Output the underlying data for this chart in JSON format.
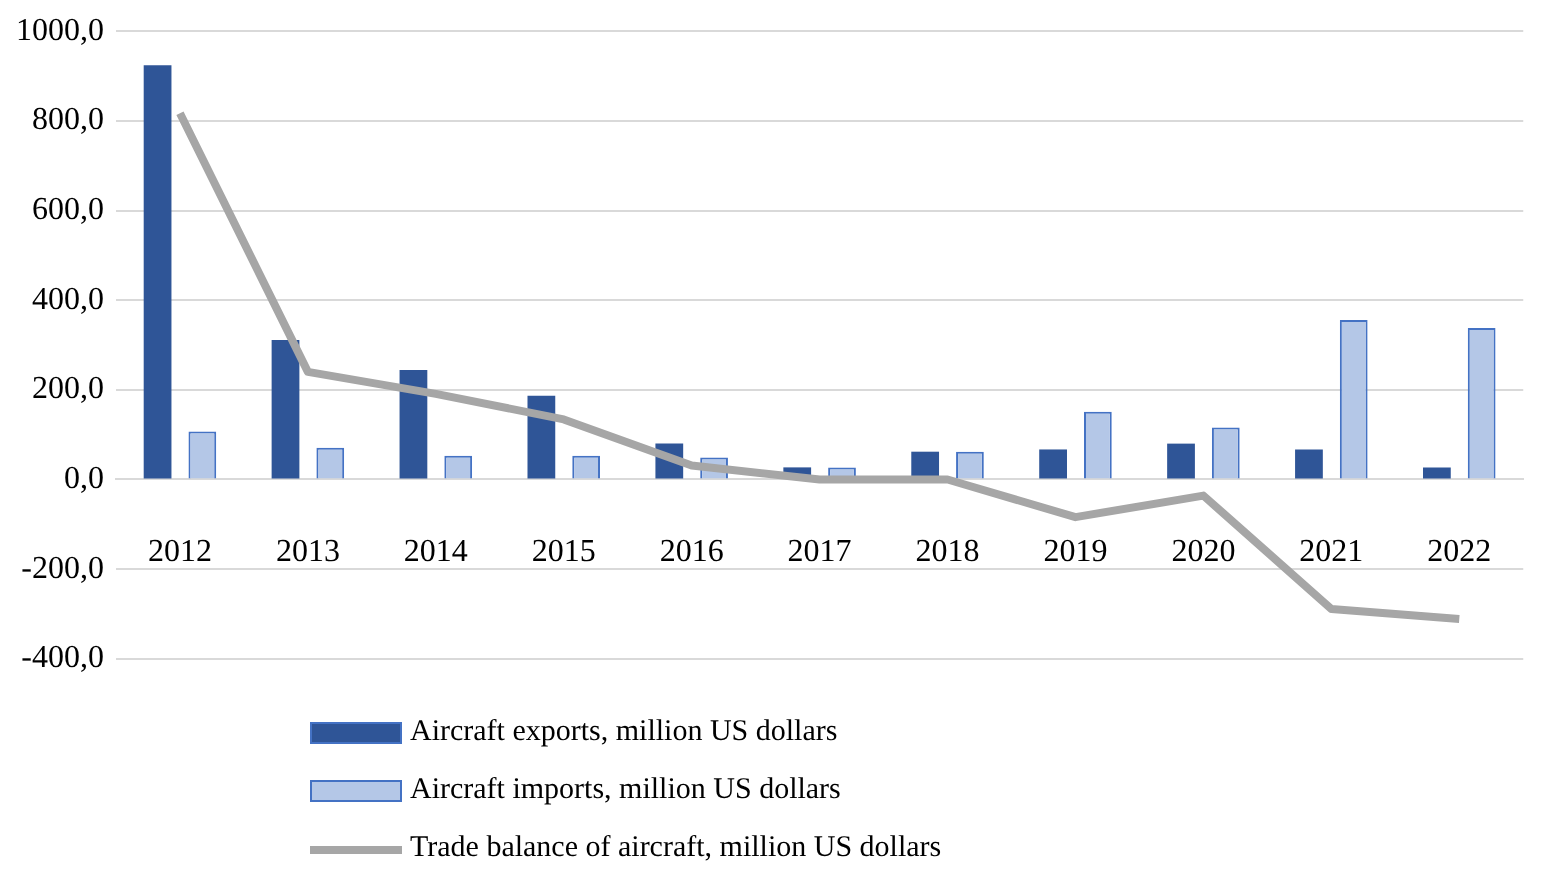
{
  "chart_data": {
    "type": "bar",
    "categories": [
      "2012",
      "2013",
      "2014",
      "2015",
      "2016",
      "2017",
      "2018",
      "2019",
      "2020",
      "2021",
      "2022"
    ],
    "series": [
      {
        "name": "Aircraft exports, million US dollars",
        "color": "#2f5597",
        "values": [
          924,
          311,
          244,
          187,
          80,
          27,
          62,
          67,
          80,
          67,
          27
        ]
      },
      {
        "name": "Aircraft imports, million US dollars",
        "color": "#b4c7e7",
        "values": [
          107,
          71,
          53,
          53,
          49,
          27,
          62,
          151,
          116,
          356,
          338
        ]
      },
      {
        "name": "Trade balance of aircraft, million US dollars",
        "type": "line",
        "color": "#a6a6a6",
        "values": [
          817,
          240,
          191,
          134,
          31,
          0,
          0,
          -84,
          -36,
          -289,
          -311
        ]
      }
    ],
    "ylim": [
      -400,
      1000
    ],
    "yticks": [
      {
        "value": -400,
        "label": "-400,0"
      },
      {
        "value": -200,
        "label": "-200,0"
      },
      {
        "value": 0,
        "label": "0,0"
      },
      {
        "value": 200,
        "label": "200,0"
      },
      {
        "value": 400,
        "label": "400,0"
      },
      {
        "value": 600,
        "label": "600,0"
      },
      {
        "value": 800,
        "label": "800,0"
      },
      {
        "value": 1000,
        "label": "1000,0"
      }
    ],
    "grid": "y",
    "legend": "bottom",
    "marker": "none"
  }
}
